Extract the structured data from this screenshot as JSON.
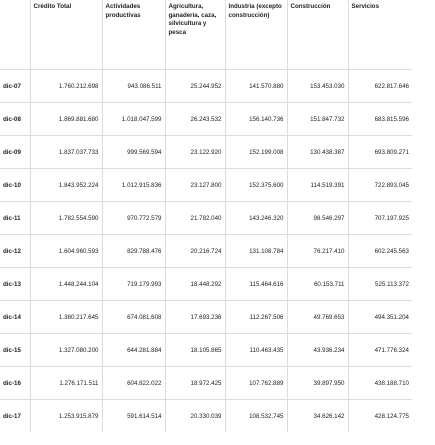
{
  "table": {
    "columns": [
      "",
      "Crédito Total",
      "Actividades productivas",
      "Agricultura, ganadería, caza, silvicultura y pesca",
      "Industria (excepto construcción)",
      "Construcción",
      "Servicios"
    ],
    "rows": [
      [
        "dic-07",
        "1.760.212.698",
        "943.086.511",
        "25.244.952",
        "141.570.880",
        "153.453.030",
        "622.817.646"
      ],
      [
        "dic-08",
        "1.869.881.680",
        "1.018.047.599",
        "26.243.532",
        "156.140.736",
        "151.847.732",
        "683.815.596"
      ],
      [
        "dic-09",
        "1.837.037.733",
        "999.569.594",
        "23.122.920",
        "152.199.008",
        "130.438.387",
        "693.809.271"
      ],
      [
        "dic-10",
        "1.843.952.224",
        "1.012.915.836",
        "23.127.800",
        "152.375.600",
        "114.519.391",
        "722.893.045"
      ],
      [
        "dic-11",
        "1.782.554.590",
        "970.772.579",
        "21.782.040",
        "143.246.320",
        "98.546.297",
        "707.197.925"
      ],
      [
        "dic-12",
        "1.604.960.593",
        "829.788.476",
        "20.216.724",
        "131.108.784",
        "76.217.410",
        "602.245.563"
      ],
      [
        "dic-13",
        "1.448.244.104",
        "719.179.993",
        "18.448.292",
        "115.464.616",
        "60.153.711",
        "525.113.372"
      ],
      [
        "dic-14",
        "1.380.217.645",
        "674.081.608",
        "17.693.236",
        "112.267.506",
        "49.769.653",
        "494.351.204"
      ],
      [
        "dic-15",
        "1.327.080.200",
        "644.281.884",
        "18.105.865",
        "110.463.435",
        "43.936.234",
        "471.776.324"
      ],
      [
        "dic-16",
        "1.276.171.511",
        "604.822.022",
        "18.972.425",
        "107.762.889",
        "39.897.950",
        "438.188.710"
      ],
      [
        "dic-17",
        "1.253.915.879",
        "591.614.514",
        "20.330.039",
        "108.532.745",
        "34.626.142",
        "428.124.775"
      ]
    ]
  }
}
